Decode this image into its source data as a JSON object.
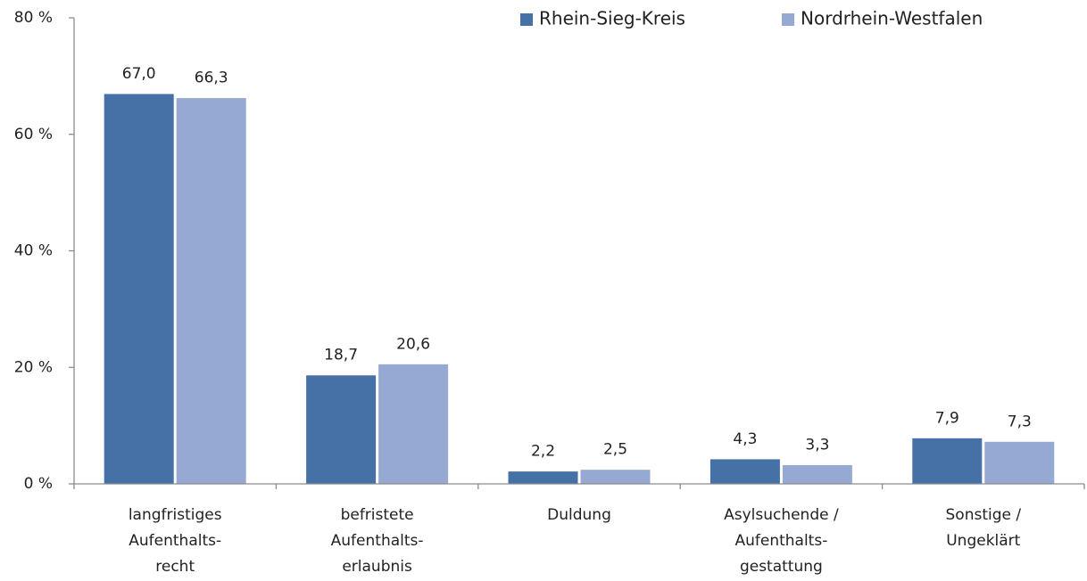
{
  "chart_data": {
    "type": "bar",
    "categories": [
      [
        "langfristiges",
        "Aufenthalts-",
        "recht"
      ],
      [
        "befristete",
        "Aufenthalts-",
        "erlaubnis"
      ],
      [
        "Duldung"
      ],
      [
        "Asylsuchende /",
        "Aufenthalts-",
        "gestattung"
      ],
      [
        "Sonstige /",
        "Ungeklärt"
      ]
    ],
    "series": [
      {
        "name": "Rhein-Sieg-Kreis",
        "color": "#4571a7",
        "values": [
          67.0,
          18.7,
          2.2,
          4.3,
          7.9
        ],
        "value_labels": [
          "67,0",
          "18,7",
          "2,2",
          "4,3",
          "7,9"
        ]
      },
      {
        "name": "Nordrhein-Westfalen",
        "color": "#95a9d2",
        "values": [
          66.3,
          20.6,
          2.5,
          3.3,
          7.3
        ],
        "value_labels": [
          "66,3",
          "20,6",
          "2,5",
          "3,3",
          "7,3"
        ]
      }
    ],
    "ylim": [
      0,
      80
    ],
    "yticks": [
      {
        "value": 0,
        "label": "0 %"
      },
      {
        "value": 20,
        "label": "20 %"
      },
      {
        "value": 40,
        "label": "40 %"
      },
      {
        "value": 60,
        "label": "60 %"
      },
      {
        "value": 80,
        "label": "80 %"
      }
    ],
    "legend": "top-right",
    "grid": false
  }
}
